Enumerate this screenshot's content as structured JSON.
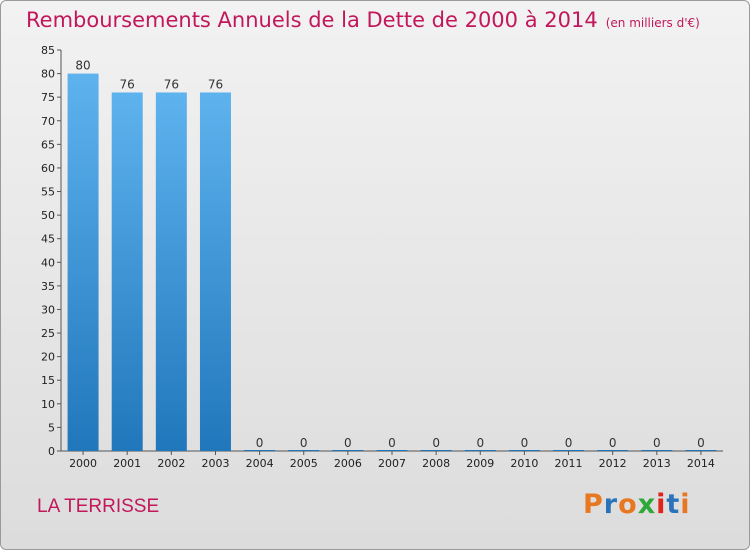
{
  "header": {
    "title": "Remboursements Annuels de la Dette de 2000 à 2014",
    "unit": "(en milliers d'€)"
  },
  "footer": {
    "commune": "LA TERRISSE",
    "logo": "Proxiti"
  },
  "colors": {
    "title": "#c2185b",
    "bar_top": "#5eb3ee",
    "bar_bottom": "#2077bb",
    "logo_letters": [
      "#e87722",
      "#2a73b8",
      "#e87722",
      "#2fa83a",
      "#e2231a",
      "#2a73b8",
      "#e87722"
    ]
  },
  "chart_data": {
    "type": "bar",
    "title": "Remboursements Annuels de la Dette de 2000 à 2014",
    "xlabel": "",
    "ylabel": "",
    "categories": [
      "2000",
      "2001",
      "2002",
      "2003",
      "2004",
      "2005",
      "2006",
      "2007",
      "2008",
      "2009",
      "2010",
      "2011",
      "2012",
      "2013",
      "2014"
    ],
    "values": [
      80,
      76,
      76,
      76,
      0,
      0,
      0,
      0,
      0,
      0,
      0,
      0,
      0,
      0,
      0
    ],
    "ylim": [
      0,
      85
    ],
    "yticks": [
      0,
      5,
      10,
      15,
      20,
      25,
      30,
      35,
      40,
      45,
      50,
      55,
      60,
      65,
      70,
      75,
      80,
      85
    ],
    "grid": false,
    "data_labels": true
  }
}
